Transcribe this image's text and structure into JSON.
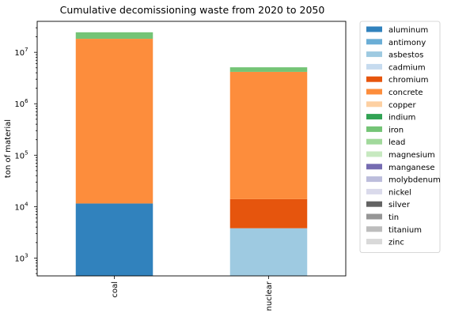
{
  "chart_data": {
    "type": "bar",
    "stacked": true,
    "title": "Cumulative decomissioning waste from 2020 to 2050",
    "xlabel": "",
    "ylabel": "ton of material",
    "yscale": "log",
    "ylim": [
      450,
      40000000
    ],
    "categories": [
      "coal",
      "nuclear"
    ],
    "y_ticks": [
      {
        "value": 1000,
        "base": "10",
        "exp": "3"
      },
      {
        "value": 10000,
        "base": "10",
        "exp": "4"
      },
      {
        "value": 100000,
        "base": "10",
        "exp": "5"
      },
      {
        "value": 1000000,
        "base": "10",
        "exp": "6"
      },
      {
        "value": 10000000,
        "base": "10",
        "exp": "7"
      }
    ],
    "legend_position": "outside-right",
    "series": [
      {
        "name": "aluminum",
        "color": "#3182bd",
        "values": [
          11500,
          0
        ]
      },
      {
        "name": "antimony",
        "color": "#6baed6",
        "values": [
          0,
          0
        ]
      },
      {
        "name": "asbestos",
        "color": "#9ecae1",
        "values": [
          0,
          3800
        ]
      },
      {
        "name": "cadmium",
        "color": "#c6dbef",
        "values": [
          0,
          0
        ]
      },
      {
        "name": "chromium",
        "color": "#e6550d",
        "values": [
          0,
          10200
        ]
      },
      {
        "name": "concrete",
        "color": "#fd8d3c",
        "values": [
          18300000,
          4150000
        ]
      },
      {
        "name": "copper",
        "color": "#fdd0a2",
        "values": [
          0,
          0
        ]
      },
      {
        "name": "indium",
        "color": "#31a354",
        "values": [
          0,
          0
        ]
      },
      {
        "name": "iron",
        "color": "#74c476",
        "values": [
          6200000,
          950000
        ]
      },
      {
        "name": "lead",
        "color": "#a1d99b",
        "values": [
          0,
          0
        ]
      },
      {
        "name": "magnesium",
        "color": "#c7e9c0",
        "values": [
          0,
          0
        ]
      },
      {
        "name": "manganese",
        "color": "#756bb1",
        "values": [
          0,
          0
        ]
      },
      {
        "name": "molybdenum",
        "color": "#bcbddc",
        "values": [
          0,
          0
        ]
      },
      {
        "name": "nickel",
        "color": "#dadaeb",
        "values": [
          0,
          0
        ]
      },
      {
        "name": "silver",
        "color": "#636363",
        "values": [
          0,
          0
        ]
      },
      {
        "name": "tin",
        "color": "#969696",
        "values": [
          0,
          0
        ]
      },
      {
        "name": "titanium",
        "color": "#bdbdbd",
        "values": [
          0,
          0
        ]
      },
      {
        "name": "zinc",
        "color": "#d9d9d9",
        "values": [
          0,
          0
        ]
      }
    ]
  }
}
